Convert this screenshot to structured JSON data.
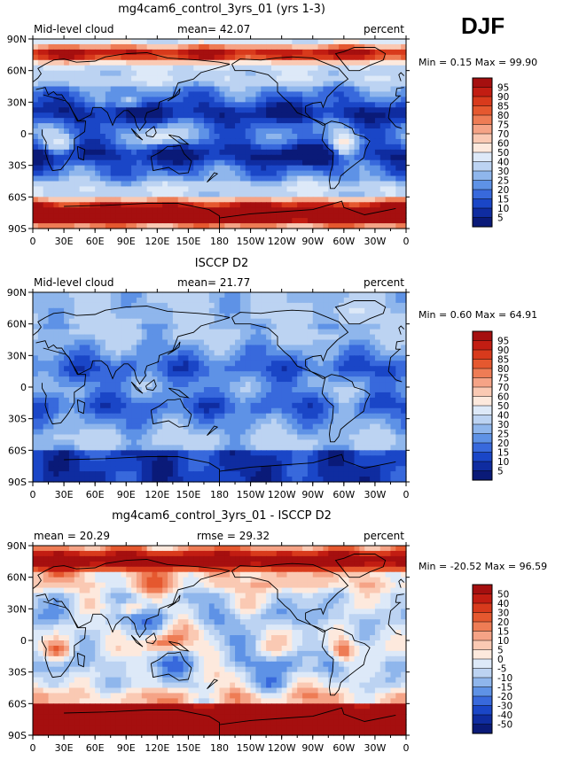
{
  "season": "DJF",
  "panels": [
    {
      "title": "mg4cam6_control_3yrs_01 (yrs 1-3)",
      "left_label": "Mid-level cloud",
      "stat1": "mean=  42.07",
      "stat2": "",
      "units": "percent",
      "minmax": "Min =    0.15 Max =   99.90",
      "palette": "cloud"
    },
    {
      "title": "ISCCP D2",
      "left_label": "Mid-level cloud",
      "stat1": "mean=  21.77",
      "stat2": "",
      "units": "percent",
      "minmax": "Min =    0.60 Max =   64.91",
      "palette": "cloud"
    },
    {
      "title": "mg4cam6_control_3yrs_01 - ISCCP D2",
      "left_label": "",
      "stat1": "mean =  20.29",
      "stat2": "rmse =  29.32",
      "units": "percent",
      "minmax": "Min = -20.52 Max =   96.59",
      "palette": "diff"
    }
  ],
  "chart_data": {
    "type": "heatmap",
    "variable": "Mid-level cloud",
    "units": "percent",
    "x_ticks": [
      "0",
      "30E",
      "60E",
      "90E",
      "120E",
      "150E",
      "180",
      "150W",
      "120W",
      "90W",
      "60W",
      "30W",
      "0"
    ],
    "y_ticks": [
      "90N",
      "60N",
      "30N",
      "0",
      "30S",
      "60S",
      "90S"
    ],
    "xlim": [
      0,
      360
    ],
    "ylim": [
      -90,
      90
    ],
    "colorbars": {
      "cloud": {
        "levels": [
          "95",
          "90",
          "85",
          "80",
          "75",
          "70",
          "60",
          "50",
          "40",
          "30",
          "25",
          "20",
          "15",
          "10",
          "5"
        ],
        "colors": [
          "#a50f0f",
          "#c21d12",
          "#d83a1c",
          "#e5582f",
          "#ee7c55",
          "#f5a386",
          "#fac9b3",
          "#fde9dd",
          "#dde9f8",
          "#bcd3f2",
          "#8fb6ec",
          "#5e92e6",
          "#3869dc",
          "#1a46c7",
          "#0f2ca0",
          "#0a1a78"
        ]
      },
      "diff": {
        "levels": [
          "50",
          "40",
          "30",
          "20",
          "15",
          "10",
          "5",
          "0",
          "-5",
          "-10",
          "-15",
          "-20",
          "-30",
          "-40",
          "-50"
        ],
        "colors": [
          "#a50f0f",
          "#c21d12",
          "#d83a1c",
          "#e5582f",
          "#ee7c55",
          "#f5a386",
          "#fac9b3",
          "#fde9dd",
          "#dde9f8",
          "#bcd3f2",
          "#8fb6ec",
          "#5e92e6",
          "#3869dc",
          "#1a46c7",
          "#0f2ca0",
          "#0a1a78"
        ]
      }
    }
  }
}
